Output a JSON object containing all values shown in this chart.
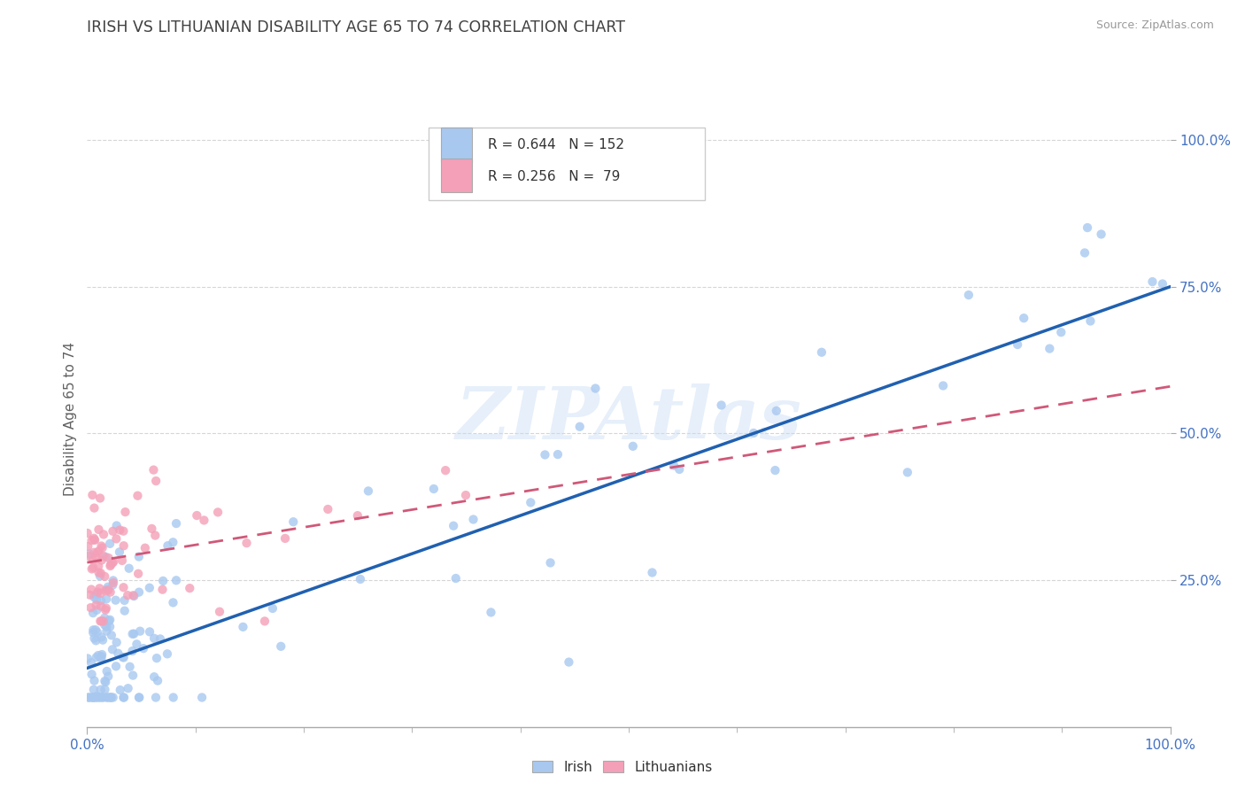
{
  "title": "IRISH VS LITHUANIAN DISABILITY AGE 65 TO 74 CORRELATION CHART",
  "source": "Source: ZipAtlas.com",
  "ylabel": "Disability Age 65 to 74",
  "irish_R": "0.644",
  "irish_N": "152",
  "lith_R": "0.256",
  "lith_N": "79",
  "irish_color": "#a8c8f0",
  "lith_color": "#f4a0b8",
  "irish_line_color": "#2060b0",
  "lith_line_color": "#d05878",
  "watermark": "ZIPAtlas",
  "background_color": "#ffffff",
  "grid_color": "#cccccc",
  "title_color": "#404040",
  "axis_color": "#4472c4",
  "ylabel_color": "#606060"
}
